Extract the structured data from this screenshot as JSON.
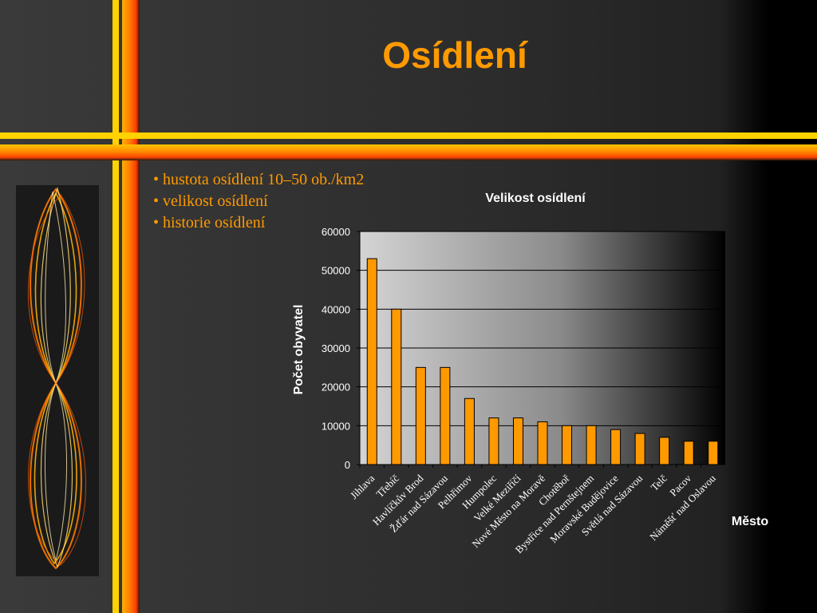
{
  "slide": {
    "title": "Osídlení",
    "bullets": [
      "hustota osídlení 10–50 ob./km2",
      "velikost osídlení",
      "historie osídlení"
    ],
    "colors": {
      "accent": "#ff9a00",
      "bar": "#ff9900",
      "stripe_yellow": "#ffd200",
      "stripe_orange": "#ff6a00"
    }
  },
  "chart_data": {
    "type": "bar",
    "title": "Velikost osídlení",
    "xlabel": "Město",
    "ylabel": "Počet obyvatel",
    "ylim": [
      0,
      60000
    ],
    "yticks": [
      0,
      10000,
      20000,
      30000,
      40000,
      50000,
      60000
    ],
    "grid": true,
    "legend": "none",
    "categories": [
      "Jihlava",
      "Třebíč",
      "Havlíčkův Brod",
      "Žďár nad Sázavou",
      "Pelhřimov",
      "Humpolec",
      "Velké Meziříčí",
      "Nové Město na Moravě",
      "Chotěboř",
      "Bystřice nad Pernštejnem",
      "Moravské Budějovice",
      "Světlá nad Sázavou",
      "Telč",
      "Pacov",
      "Náměšť nad Oslavou"
    ],
    "values": [
      53000,
      40000,
      25000,
      25000,
      17000,
      12000,
      12000,
      11000,
      10000,
      10000,
      9000,
      8000,
      7000,
      6000,
      6000
    ]
  }
}
